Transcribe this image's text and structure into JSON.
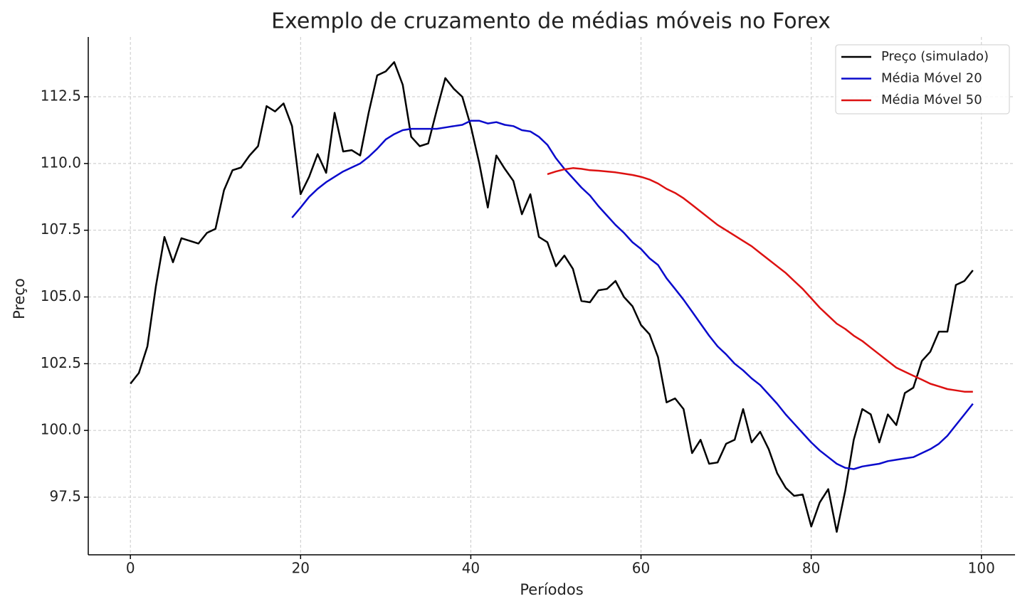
{
  "chart_data": {
    "type": "line",
    "title": "Exemplo de cruzamento de médias móveis no Forex",
    "xlabel": "Períodos",
    "ylabel": "Preço",
    "x": [
      0,
      1,
      2,
      3,
      4,
      5,
      6,
      7,
      8,
      9,
      10,
      11,
      12,
      13,
      14,
      15,
      16,
      17,
      18,
      19,
      20,
      21,
      22,
      23,
      24,
      25,
      26,
      27,
      28,
      29,
      30,
      31,
      32,
      33,
      34,
      35,
      36,
      37,
      38,
      39,
      40,
      41,
      42,
      43,
      44,
      45,
      46,
      47,
      48,
      49,
      50,
      51,
      52,
      53,
      54,
      55,
      56,
      57,
      58,
      59,
      60,
      61,
      62,
      63,
      64,
      65,
      66,
      67,
      68,
      69,
      70,
      71,
      72,
      73,
      74,
      75,
      76,
      77,
      78,
      79,
      80,
      81,
      82,
      83,
      84,
      85,
      86,
      87,
      88,
      89,
      90,
      91,
      92,
      93,
      94,
      95,
      96,
      97,
      98,
      99
    ],
    "series": [
      {
        "name": "Preço (simulado)",
        "color": "#000000",
        "values": [
          101.75,
          102.15,
          103.15,
          105.4,
          107.25,
          106.3,
          107.2,
          107.1,
          107.0,
          107.4,
          107.55,
          109.0,
          109.75,
          109.85,
          110.3,
          110.65,
          112.15,
          111.95,
          112.25,
          111.4,
          108.85,
          109.5,
          110.35,
          109.65,
          111.9,
          110.45,
          110.5,
          110.3,
          111.9,
          113.3,
          113.45,
          113.8,
          112.95,
          111.0,
          110.65,
          110.75,
          112.0,
          113.2,
          112.8,
          112.5,
          111.4,
          110.0,
          108.35,
          110.3,
          109.8,
          109.35,
          108.1,
          108.85,
          107.25,
          107.05,
          106.15,
          106.55,
          106.05,
          104.85,
          104.8,
          105.25,
          105.3,
          105.6,
          105.0,
          104.65,
          103.95,
          103.6,
          102.75,
          101.05,
          101.2,
          100.8,
          99.15,
          99.65,
          98.75,
          98.8,
          99.5,
          99.65,
          100.8,
          99.55,
          99.95,
          99.3,
          98.4,
          97.85,
          97.55,
          97.6,
          96.4,
          97.3,
          97.8,
          96.2,
          97.75,
          99.65,
          100.8,
          100.6,
          99.55,
          100.6,
          100.2,
          101.4,
          101.6,
          102.6,
          102.95,
          103.7,
          103.7,
          105.45,
          105.6,
          106.0
        ]
      },
      {
        "name": "Média Móvel 20",
        "color": "#0a0acc",
        "values": [
          null,
          null,
          null,
          null,
          null,
          null,
          null,
          null,
          null,
          null,
          null,
          null,
          null,
          null,
          null,
          null,
          null,
          null,
          null,
          107.97,
          108.35,
          108.75,
          109.05,
          109.3,
          109.5,
          109.7,
          109.85,
          110.0,
          110.25,
          110.55,
          110.9,
          111.1,
          111.25,
          111.3,
          111.3,
          111.3,
          111.3,
          111.35,
          111.4,
          111.45,
          111.6,
          111.6,
          111.5,
          111.55,
          111.45,
          111.4,
          111.25,
          111.2,
          111.0,
          110.7,
          110.2,
          109.8,
          109.45,
          109.1,
          108.8,
          108.4,
          108.05,
          107.7,
          107.4,
          107.05,
          106.8,
          106.45,
          106.2,
          105.7,
          105.3,
          104.9,
          104.45,
          104.0,
          103.55,
          103.15,
          102.85,
          102.5,
          102.25,
          101.95,
          101.7,
          101.35,
          101.0,
          100.6,
          100.25,
          99.9,
          99.55,
          99.25,
          99.0,
          98.75,
          98.6,
          98.55,
          98.65,
          98.7,
          98.75,
          98.85,
          98.9,
          98.95,
          99.0,
          99.15,
          99.3,
          99.5,
          99.8,
          100.2,
          100.6,
          101.0
        ]
      },
      {
        "name": "Média Móvel 50",
        "color": "#dd1111",
        "values": [
          null,
          null,
          null,
          null,
          null,
          null,
          null,
          null,
          null,
          null,
          null,
          null,
          null,
          null,
          null,
          null,
          null,
          null,
          null,
          null,
          null,
          null,
          null,
          null,
          null,
          null,
          null,
          null,
          null,
          null,
          null,
          null,
          null,
          null,
          null,
          null,
          null,
          null,
          null,
          null,
          null,
          null,
          null,
          null,
          null,
          null,
          null,
          null,
          null,
          109.6,
          109.7,
          109.78,
          109.83,
          109.8,
          109.75,
          109.73,
          109.7,
          109.67,
          109.62,
          109.57,
          109.5,
          109.4,
          109.25,
          109.05,
          108.9,
          108.7,
          108.45,
          108.2,
          107.95,
          107.7,
          107.5,
          107.3,
          107.1,
          106.9,
          106.65,
          106.4,
          106.15,
          105.9,
          105.6,
          105.3,
          104.95,
          104.6,
          104.3,
          104.0,
          103.8,
          103.55,
          103.35,
          103.1,
          102.85,
          102.6,
          102.35,
          102.2,
          102.05,
          101.9,
          101.75,
          101.65,
          101.55,
          101.5,
          101.45,
          101.45
        ]
      }
    ],
    "xlim": [
      -4.95,
      103.95
    ],
    "ylim": [
      95.34,
      114.74
    ],
    "xticks": [
      0,
      20,
      40,
      60,
      80,
      100
    ],
    "yticks": [
      97.5,
      {
        "value": 100,
        "label": "100.0"
      },
      102.5,
      {
        "value": 105,
        "label": "105.0"
      },
      107.5,
      {
        "value": 110,
        "label": "110.0"
      },
      112.5
    ],
    "grid": true,
    "legend": "upper right"
  }
}
